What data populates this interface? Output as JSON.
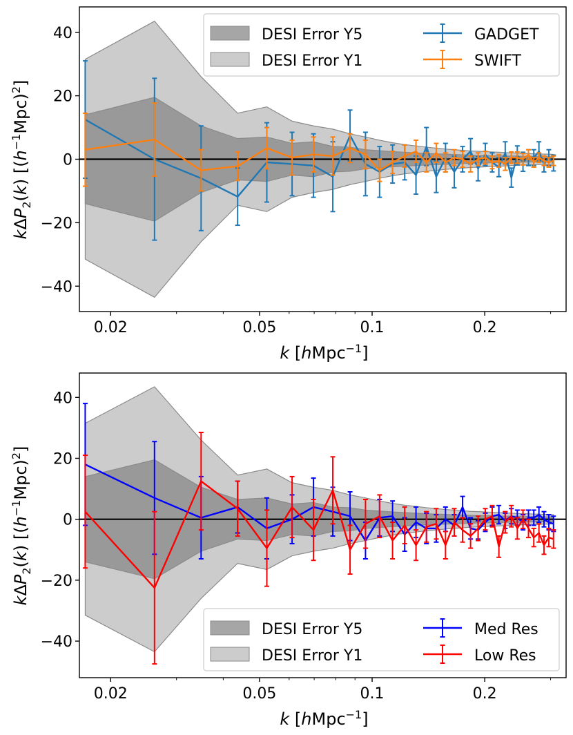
{
  "chart_data": [
    {
      "type": "line",
      "xlabel": "k [hMpc⁻¹]",
      "ylabel": "kΔP₂(k) [(h⁻¹Mpc)²]",
      "xscale": "log",
      "xlim": [
        0.0165,
        0.33
      ],
      "ylim": [
        -48,
        48
      ],
      "xticks": [
        {
          "v": 0.02,
          "label": "0.02"
        },
        {
          "v": 0.05,
          "label": "0.05"
        },
        {
          "v": 0.1,
          "label": "0.1"
        },
        {
          "v": 0.2,
          "label": "0.2"
        }
      ],
      "yticks": [
        {
          "v": 40,
          "label": "40"
        },
        {
          "v": 20,
          "label": "20"
        },
        {
          "v": 0,
          "label": "0"
        },
        {
          "v": -20,
          "label": "−20"
        },
        {
          "v": -40,
          "label": "−40"
        }
      ],
      "legend": {
        "placement": "top-right",
        "columns": [
          [
            "DESI Error Y5",
            "DESI Error Y1"
          ],
          [
            "GADGET",
            "SWIFT"
          ]
        ]
      },
      "bands": [
        {
          "name": "DESI Error Y1",
          "color": "#cccccc",
          "x": [
            0.0171,
            0.0262,
            0.0349,
            0.0437,
            0.0523,
            0.0611,
            0.0697,
            0.0785,
            0.0873,
            0.096,
            0.1047,
            0.1134,
            0.1222,
            0.131,
            0.1397,
            0.1484,
            0.1571,
            0.1658,
            0.1745,
            0.1833,
            0.192,
            0.2007,
            0.2094,
            0.2182,
            0.2269,
            0.2356,
            0.2444,
            0.2531,
            0.2618,
            0.2705,
            0.2792,
            0.288,
            0.2967,
            0.3054
          ],
          "upper": [
            31.5,
            43.5,
            26,
            14.5,
            16.5,
            12,
            10.5,
            9.5,
            8,
            7,
            6,
            5.2,
            4.6,
            4.2,
            3.8,
            3.5,
            3.2,
            3.0,
            2.8,
            2.6,
            2.5,
            2.4,
            2.3,
            2.2,
            2.1,
            2.0,
            1.9,
            1.8,
            1.8,
            1.7,
            1.7,
            1.6,
            1.6,
            1.5
          ]
        },
        {
          "name": "DESI Error Y5",
          "color": "#888888",
          "x": [
            0.0171,
            0.0262,
            0.0349,
            0.0437,
            0.0523,
            0.0611,
            0.0697,
            0.0785,
            0.0873,
            0.096,
            0.1047,
            0.1134,
            0.1222,
            0.131,
            0.1397,
            0.1484,
            0.1571,
            0.1658,
            0.1745,
            0.1833,
            0.192,
            0.2007,
            0.2094,
            0.2182,
            0.2269,
            0.2356,
            0.2444,
            0.2531,
            0.2618,
            0.2705,
            0.2792,
            0.288,
            0.2967,
            0.3054
          ],
          "upper": [
            14,
            19.5,
            10.5,
            6.5,
            7,
            5,
            5.5,
            4,
            3.8,
            3.0,
            2.7,
            2.4,
            2.2,
            2.0,
            1.8,
            1.7,
            1.6,
            1.5,
            1.4,
            1.3,
            1.2,
            1.2,
            1.1,
            1.1,
            1.0,
            1.0,
            1.0,
            0.9,
            0.9,
            0.9,
            0.9,
            0.8,
            0.8,
            0.8
          ]
        }
      ],
      "series": [
        {
          "name": "GADGET",
          "color": "#1f77b4",
          "x": [
            0.0171,
            0.0262,
            0.0349,
            0.0437,
            0.0523,
            0.0611,
            0.0697,
            0.0785,
            0.0873,
            0.096,
            0.1047,
            0.1134,
            0.1222,
            0.131,
            0.1397,
            0.1484,
            0.1571,
            0.1658,
            0.1745,
            0.1833,
            0.192,
            0.2007,
            0.2094,
            0.2182,
            0.2269,
            0.2356,
            0.2444,
            0.2531,
            0.2618,
            0.2705,
            0.2792,
            0.288,
            0.2967,
            0.3054
          ],
          "y": [
            12.5,
            0,
            -6,
            -11.8,
            -1,
            -1.5,
            -2,
            -5.5,
            7.5,
            -1.5,
            -4,
            -1.5,
            -1,
            -5,
            4,
            -5.5,
            0.5,
            -4,
            0,
            2.5,
            -3,
            1.5,
            -1,
            -2.5,
            2,
            -5.8,
            1.2,
            -0.8,
            0.5,
            0.5,
            2.5,
            -1.5,
            0.5,
            -1.2
          ],
          "err": [
            18.5,
            25.5,
            16.5,
            9,
            12.5,
            10,
            10,
            11,
            8,
            10,
            8,
            6,
            5.5,
            6,
            6,
            5,
            4.5,
            5,
            4,
            4,
            3.8,
            3.5,
            3,
            3,
            3.5,
            3,
            3,
            3,
            2.5,
            2.5,
            3,
            2.5,
            2.5,
            2.5
          ]
        },
        {
          "name": "SWIFT",
          "color": "#ff7f0e",
          "x": [
            0.0171,
            0.0262,
            0.0349,
            0.0437,
            0.0523,
            0.0611,
            0.0697,
            0.0785,
            0.0873,
            0.096,
            0.1047,
            0.1134,
            0.1222,
            0.131,
            0.1397,
            0.1484,
            0.1571,
            0.1658,
            0.1745,
            0.1833,
            0.192,
            0.2007,
            0.2094,
            0.2182,
            0.2269,
            0.2356,
            0.2444,
            0.2531,
            0.2618,
            0.2705,
            0.2792,
            0.288,
            0.2967,
            0.3054
          ],
          "y": [
            3,
            6.2,
            -3.5,
            -2.2,
            3.5,
            0.5,
            1.5,
            1,
            3.5,
            1.5,
            -3.5,
            -1,
            1,
            2.5,
            -1,
            2,
            -1,
            0.5,
            0,
            -1.5,
            0,
            0.5,
            -1,
            -0.5,
            -1.5,
            0.5,
            0.5,
            0,
            1.5,
            -1,
            0.5,
            -0.5,
            -1,
            -0.5
          ],
          "err": [
            11.5,
            11.5,
            6.5,
            4.5,
            6.5,
            5.5,
            5.5,
            6,
            4.5,
            4.5,
            3.5,
            3.5,
            3.5,
            3.5,
            3,
            3,
            3,
            2.5,
            2.5,
            2.5,
            2,
            2,
            2,
            2,
            2,
            1.8,
            1.8,
            1.8,
            1.5,
            1.5,
            1.5,
            1.5,
            1.5,
            1.5
          ]
        }
      ]
    },
    {
      "type": "line",
      "xlabel": "k [hMpc⁻¹]",
      "ylabel": "kΔP₂(k) [(h⁻¹Mpc)²]",
      "xscale": "log",
      "xlim": [
        0.0165,
        0.33
      ],
      "ylim": [
        -52,
        48
      ],
      "xticks": [
        {
          "v": 0.02,
          "label": "0.02"
        },
        {
          "v": 0.05,
          "label": "0.05"
        },
        {
          "v": 0.1,
          "label": "0.1"
        },
        {
          "v": 0.2,
          "label": "0.2"
        }
      ],
      "yticks": [
        {
          "v": 40,
          "label": "40"
        },
        {
          "v": 20,
          "label": "20"
        },
        {
          "v": 0,
          "label": "0"
        },
        {
          "v": -20,
          "label": "−20"
        },
        {
          "v": -40,
          "label": "−40"
        }
      ],
      "legend": {
        "placement": "bottom-right",
        "columns": [
          [
            "DESI Error Y5",
            "DESI Error Y1"
          ],
          [
            "Med Res",
            "Low Res"
          ]
        ]
      },
      "bands": [
        {
          "name": "DESI Error Y1",
          "color": "#cccccc",
          "x": [
            0.0171,
            0.0262,
            0.0349,
            0.0437,
            0.0523,
            0.0611,
            0.0697,
            0.0785,
            0.0873,
            0.096,
            0.1047,
            0.1134,
            0.1222,
            0.131,
            0.1397,
            0.1484,
            0.1571,
            0.1658,
            0.1745,
            0.1833,
            0.192,
            0.2007,
            0.2094,
            0.2182,
            0.2269,
            0.2356,
            0.2444,
            0.2531,
            0.2618,
            0.2705,
            0.2792,
            0.288,
            0.2967,
            0.3054
          ],
          "upper": [
            31.5,
            43.5,
            26,
            14.5,
            16.5,
            12,
            10.5,
            9.5,
            8,
            7,
            6,
            5.2,
            4.6,
            4.2,
            3.8,
            3.5,
            3.2,
            3.0,
            2.8,
            2.6,
            2.5,
            2.4,
            2.3,
            2.2,
            2.1,
            2.0,
            1.9,
            1.8,
            1.8,
            1.7,
            1.7,
            1.6,
            1.6,
            1.5
          ]
        },
        {
          "name": "DESI Error Y5",
          "color": "#888888",
          "x": [
            0.0171,
            0.0262,
            0.0349,
            0.0437,
            0.0523,
            0.0611,
            0.0697,
            0.0785,
            0.0873,
            0.096,
            0.1047,
            0.1134,
            0.1222,
            0.131,
            0.1397,
            0.1484,
            0.1571,
            0.1658,
            0.1745,
            0.1833,
            0.192,
            0.2007,
            0.2094,
            0.2182,
            0.2269,
            0.2356,
            0.2444,
            0.2531,
            0.2618,
            0.2705,
            0.2792,
            0.288,
            0.2967,
            0.3054
          ],
          "upper": [
            14,
            19.5,
            10.5,
            6.5,
            7,
            5,
            5.5,
            4,
            3.8,
            3.0,
            2.7,
            2.4,
            2.2,
            2.0,
            1.8,
            1.7,
            1.6,
            1.5,
            1.4,
            1.3,
            1.2,
            1.2,
            1.1,
            1.1,
            1.0,
            1.0,
            1.0,
            0.9,
            0.9,
            0.9,
            0.9,
            0.8,
            0.8,
            0.8
          ]
        }
      ],
      "series": [
        {
          "name": "Med Res",
          "color": "#0000ff",
          "x": [
            0.0171,
            0.0262,
            0.0349,
            0.0437,
            0.0523,
            0.0611,
            0.0697,
            0.0785,
            0.0873,
            0.096,
            0.1047,
            0.1134,
            0.1222,
            0.131,
            0.1397,
            0.1484,
            0.1571,
            0.1658,
            0.1745,
            0.1833,
            0.192,
            0.2007,
            0.2094,
            0.2182,
            0.2269,
            0.2356,
            0.2444,
            0.2531,
            0.2618,
            0.2705,
            0.2792,
            0.288,
            0.2967,
            0.3054
          ],
          "y": [
            18,
            7,
            0.5,
            4,
            -3,
            0,
            4,
            2.5,
            1,
            -7,
            0.5,
            1,
            -5,
            -1,
            -3,
            -3,
            0,
            -2,
            4,
            -3,
            -3.5,
            -1,
            1,
            1.5,
            -0.5,
            1,
            0.5,
            -1,
            0.5,
            0.5,
            1.5,
            0,
            -1,
            -1.5
          ],
          "err": [
            20,
            18.5,
            13.5,
            8.5,
            10,
            8,
            9.5,
            8,
            8,
            6,
            6,
            5,
            5.5,
            5,
            5,
            4.5,
            4,
            3.5,
            3.5,
            3.5,
            3,
            3,
            3,
            3,
            2.5,
            2.5,
            2.5,
            2.5,
            2.5,
            2.5,
            2.5,
            2.5,
            2.5,
            2.5
          ]
        },
        {
          "name": "Low Res",
          "color": "#ff0000",
          "x": [
            0.0171,
            0.0262,
            0.0349,
            0.0437,
            0.0523,
            0.0611,
            0.0697,
            0.0785,
            0.0873,
            0.096,
            0.1047,
            0.1134,
            0.1222,
            0.131,
            0.1397,
            0.1484,
            0.1571,
            0.1658,
            0.1745,
            0.1833,
            0.192,
            0.2007,
            0.2094,
            0.2182,
            0.2269,
            0.2356,
            0.2444,
            0.2531,
            0.2618,
            0.2705,
            0.2792,
            0.288,
            0.2967,
            0.3054
          ],
          "y": [
            2.5,
            -22.5,
            12.5,
            3.5,
            -9.5,
            4,
            -3.5,
            9.5,
            -10,
            -1.5,
            1,
            -7,
            -2,
            -8.5,
            -2.5,
            -1.5,
            -8.5,
            -1,
            -3.5,
            -5.5,
            -3,
            0,
            1,
            -9,
            -1,
            1,
            -3,
            0,
            -3,
            -6,
            -4.5,
            -8.5,
            -6,
            -6.5
          ],
          "err": [
            18.5,
            25,
            16,
            9,
            12.5,
            10,
            10,
            11,
            8,
            8,
            7,
            6,
            6,
            5,
            5,
            5,
            4.5,
            4.5,
            4,
            4,
            4,
            3.5,
            3.5,
            3.5,
            3.5,
            3.5,
            3.5,
            3,
            3,
            3,
            3,
            3,
            3,
            3
          ]
        }
      ]
    }
  ]
}
